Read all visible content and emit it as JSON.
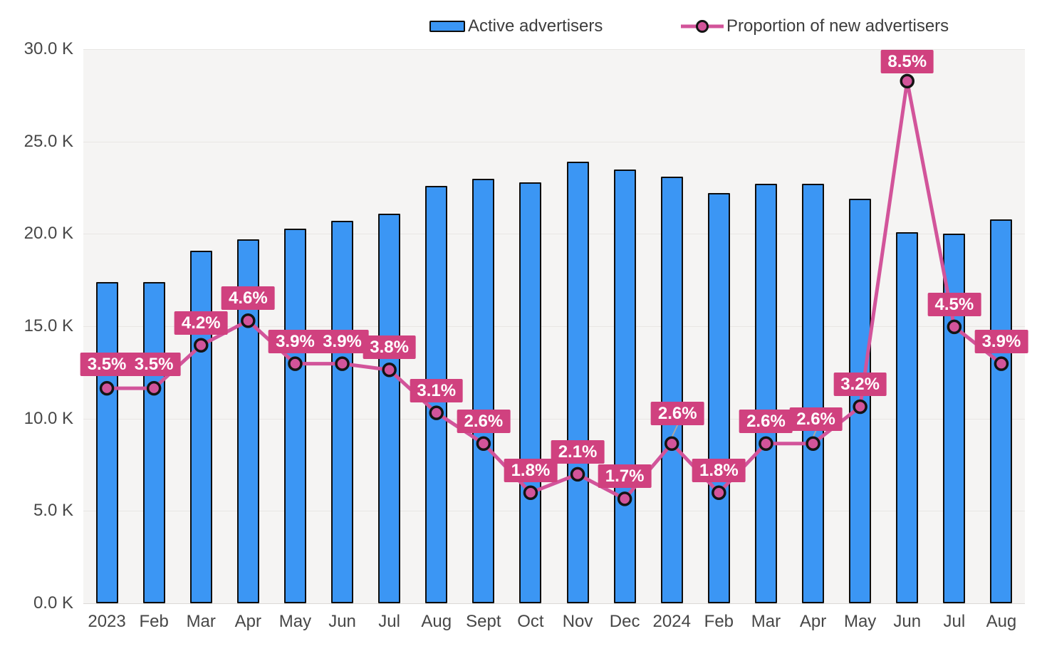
{
  "legend": {
    "bars_label": "Active advertisers",
    "line_label": "Proportion of new advertisers"
  },
  "colors": {
    "bar_fill": "#3B96F4",
    "bar_border": "#0d0d0d",
    "line": "#D2549A",
    "marker_fill": "#D2549A",
    "marker_border": "#141414",
    "label_bg": "#D0417F",
    "label_text": "#FFFFFF",
    "plot_bg": "#F5F4F3",
    "gridline": "#E8E6E4",
    "baseline": "#DBD9D7",
    "axis_text": "#474747",
    "leader_line": "#ABA7A2"
  },
  "chart_data": {
    "type": "bar",
    "combo": "bar+line",
    "categories": [
      "2023",
      "Feb",
      "Mar",
      "Apr",
      "May",
      "Jun",
      "Jul",
      "Aug",
      "Sept",
      "Oct",
      "Nov",
      "Dec",
      "2024",
      "Feb",
      "Mar",
      "Apr",
      "May",
      "Jun",
      "Jul",
      "Aug"
    ],
    "series": [
      {
        "name": "Active advertisers",
        "type": "bar",
        "unit": "thousands",
        "values": [
          17.4,
          17.4,
          19.1,
          19.7,
          20.3,
          20.7,
          21.1,
          22.6,
          23.0,
          22.8,
          23.9,
          23.5,
          23.1,
          22.2,
          22.7,
          22.7,
          21.9,
          20.1,
          20.0,
          20.8
        ]
      },
      {
        "name": "Proportion of new advertisers",
        "type": "line",
        "unit": "%",
        "values": [
          3.5,
          3.5,
          4.2,
          4.6,
          3.9,
          3.9,
          3.8,
          3.1,
          2.6,
          1.8,
          2.1,
          1.7,
          2.6,
          1.8,
          2.6,
          2.6,
          3.2,
          8.5,
          4.5,
          3.9
        ],
        "labels": [
          "3.5%",
          "3.5%",
          "4.2%",
          "4.6%",
          "3.9%",
          "3.9%",
          "3.8%",
          "3.1%",
          "2.6%",
          "1.8%",
          "2.1%",
          "1.7%",
          "2.6%",
          "1.8%",
          "2.6%",
          "2.6%",
          "3.2%",
          "8.5%",
          "4.5%",
          "3.9%"
        ]
      }
    ],
    "y_axis_left": {
      "tick_labels_top_to_bottom": [
        "30.0 K",
        "25.0 K",
        "20.0 K",
        "15.0 K",
        "10.0 K",
        "5.0 K",
        "0.0 K"
      ],
      "min": 0,
      "max": 30000,
      "step": 5000
    },
    "y_axis_right": {
      "visible": false,
      "min": 0,
      "max": 9,
      "unit": "%"
    },
    "grid": true,
    "legend_position": "top"
  }
}
